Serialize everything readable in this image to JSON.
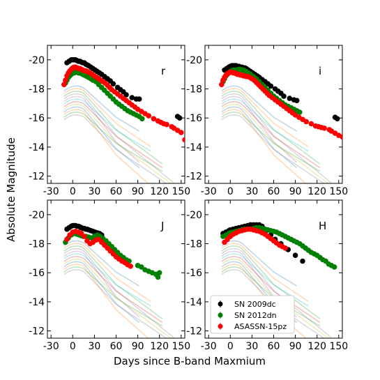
{
  "chart_data": {
    "type": "scatter",
    "xlabel": "Days since B-band Maxmium",
    "ylabel": "Absolute Magnitude",
    "xlim": [
      -35,
      155
    ],
    "ylim": [
      -21,
      -11.5
    ],
    "y_inverted": true,
    "xticks": [
      -30,
      0,
      30,
      60,
      90,
      120,
      150
    ],
    "xtick_labels": [
      "-30",
      "0",
      "30",
      "60",
      "90",
      "120",
      "150"
    ],
    "yticks": [
      -20,
      -18,
      -16,
      -14,
      -12
    ],
    "ytick_labels": [
      "-20",
      "-18",
      "-16",
      "-14",
      "-12"
    ],
    "legend": {
      "location": "lower-left of panel H",
      "entries": [
        {
          "label": "SN 2009dc",
          "color": "#000000",
          "marker": "circle with error bar"
        },
        {
          "label": "SN 2012dn",
          "color": "#008000",
          "marker": "circle with error bar"
        },
        {
          "label": "ASASSN-15pz",
          "color": "#ff0000",
          "marker": "circle with error bar"
        }
      ]
    },
    "panels": [
      {
        "band": "r",
        "series": [
          {
            "name": "SN 2009dc",
            "color": "#000000",
            "x": [
              -8,
              -5,
              -2,
              0,
              2,
              4,
              6,
              8,
              10,
              12,
              14,
              16,
              18,
              20,
              22,
              25,
              28,
              31,
              34,
              37,
              40,
              44,
              48,
              52,
              56,
              62,
              66,
              70,
              74,
              82,
              88,
              92,
              145,
              148
            ],
            "y": [
              -19.8,
              -19.9,
              -20.0,
              -20.0,
              -20.0,
              -20.0,
              -19.95,
              -19.9,
              -19.9,
              -19.85,
              -19.8,
              -19.8,
              -19.7,
              -19.65,
              -19.6,
              -19.5,
              -19.4,
              -19.3,
              -19.2,
              -19.1,
              -19.0,
              -18.85,
              -18.7,
              -18.55,
              -18.35,
              -18.1,
              -17.95,
              -17.8,
              -17.6,
              -17.4,
              -17.3,
              -17.3,
              -16.1,
              -16.0
            ]
          },
          {
            "name": "SN 2012dn",
            "color": "#008000",
            "x": [
              -10,
              -8,
              -6,
              -4,
              -2,
              0,
              2,
              4,
              6,
              8,
              10,
              12,
              14,
              16,
              18,
              20,
              22,
              25,
              28,
              32,
              36,
              40,
              44,
              48,
              52,
              56,
              60,
              64,
              68,
              72,
              76,
              80,
              84,
              88,
              92,
              96
            ],
            "y": [
              -18.4,
              -18.6,
              -18.8,
              -18.9,
              -19.0,
              -19.1,
              -19.1,
              -19.15,
              -19.15,
              -19.1,
              -19.1,
              -19.05,
              -19.0,
              -18.95,
              -18.9,
              -18.85,
              -18.8,
              -18.7,
              -18.6,
              -18.5,
              -18.3,
              -18.1,
              -17.9,
              -17.7,
              -17.5,
              -17.3,
              -17.1,
              -16.95,
              -16.8,
              -16.65,
              -16.5,
              -16.4,
              -16.3,
              -16.2,
              -16.1,
              -15.95
            ]
          },
          {
            "name": "ASASSN-15pz",
            "color": "#ff0000",
            "x": [
              -12,
              -10,
              -8,
              -6,
              -4,
              -2,
              0,
              2,
              4,
              6,
              8,
              10,
              12,
              14,
              16,
              18,
              20,
              22,
              24,
              27,
              30,
              33,
              36,
              39,
              42,
              45,
              48,
              51,
              54,
              58,
              62,
              66,
              70,
              74,
              78,
              82,
              86,
              90,
              95,
              100,
              105,
              112,
              118,
              122,
              126,
              130,
              137,
              140,
              145,
              150,
              155
            ],
            "y": [
              -18.3,
              -18.6,
              -18.9,
              -19.1,
              -19.25,
              -19.35,
              -19.45,
              -19.5,
              -19.5,
              -19.45,
              -19.4,
              -19.4,
              -19.35,
              -19.3,
              -19.25,
              -19.25,
              -19.2,
              -19.15,
              -19.1,
              -19.0,
              -18.9,
              -18.8,
              -18.7,
              -18.6,
              -18.5,
              -18.4,
              -18.25,
              -18.1,
              -17.95,
              -17.8,
              -17.65,
              -17.5,
              -17.35,
              -17.2,
              -17.05,
              -16.9,
              -16.75,
              -16.6,
              -16.45,
              -16.3,
              -16.15,
              -15.95,
              -15.8,
              -15.7,
              -15.6,
              -15.55,
              -15.4,
              -15.3,
              -15.15,
              -15.0,
              -14.5
            ]
          }
        ]
      },
      {
        "band": "i",
        "series": [
          {
            "name": "SN 2009dc",
            "color": "#000000",
            "x": [
              -8,
              -5,
              -2,
              0,
              2,
              4,
              6,
              8,
              10,
              12,
              14,
              16,
              18,
              20,
              22,
              25,
              28,
              31,
              34,
              37,
              40,
              44,
              48,
              52,
              56,
              62,
              66,
              70,
              74,
              82,
              88,
              92,
              145,
              148
            ],
            "y": [
              -19.3,
              -19.4,
              -19.5,
              -19.55,
              -19.6,
              -19.6,
              -19.6,
              -19.6,
              -19.55,
              -19.55,
              -19.5,
              -19.5,
              -19.45,
              -19.45,
              -19.4,
              -19.3,
              -19.2,
              -19.1,
              -19.0,
              -18.9,
              -18.8,
              -18.65,
              -18.5,
              -18.35,
              -18.2,
              -18.0,
              -17.85,
              -17.7,
              -17.5,
              -17.35,
              -17.25,
              -17.2,
              -16.05,
              -15.95
            ]
          },
          {
            "name": "SN 2012dn",
            "color": "#008000",
            "x": [
              -10,
              -8,
              -6,
              -4,
              -2,
              0,
              2,
              4,
              6,
              8,
              10,
              12,
              14,
              16,
              18,
              20,
              22,
              25,
              28,
              32,
              36,
              40,
              44,
              48,
              52,
              56,
              60,
              64,
              68,
              72,
              76,
              80,
              84,
              88,
              92,
              96
            ],
            "y": [
              -18.5,
              -18.7,
              -18.9,
              -19.0,
              -19.1,
              -19.2,
              -19.25,
              -19.3,
              -19.3,
              -19.3,
              -19.3,
              -19.35,
              -19.35,
              -19.3,
              -19.3,
              -19.25,
              -19.2,
              -19.1,
              -19.0,
              -18.85,
              -18.7,
              -18.5,
              -18.3,
              -18.1,
              -17.9,
              -17.7,
              -17.5,
              -17.35,
              -17.2,
              -17.05,
              -16.9,
              -16.8,
              -16.7,
              -16.6,
              -16.5,
              -16.4
            ]
          },
          {
            "name": "ASASSN-15pz",
            "color": "#ff0000",
            "x": [
              -12,
              -10,
              -8,
              -6,
              -4,
              -2,
              0,
              2,
              4,
              6,
              8,
              10,
              12,
              14,
              16,
              18,
              20,
              22,
              24,
              27,
              30,
              33,
              36,
              39,
              42,
              45,
              48,
              51,
              54,
              58,
              62,
              66,
              70,
              74,
              78,
              82,
              86,
              90,
              95,
              100,
              105,
              112,
              118,
              122,
              126,
              130,
              137,
              140,
              145,
              150,
              155
            ],
            "y": [
              -18.3,
              -18.6,
              -18.8,
              -18.95,
              -19.05,
              -19.1,
              -19.15,
              -19.15,
              -19.1,
              -19.1,
              -19.05,
              -19.0,
              -19.0,
              -18.95,
              -18.95,
              -18.9,
              -18.9,
              -18.85,
              -18.85,
              -18.8,
              -18.7,
              -18.6,
              -18.45,
              -18.3,
              -18.15,
              -18.0,
              -17.85,
              -17.7,
              -17.55,
              -17.4,
              -17.25,
              -17.1,
              -16.95,
              -16.8,
              -16.65,
              -16.5,
              -16.35,
              -16.2,
              -16.05,
              -15.9,
              -15.75,
              -15.6,
              -15.45,
              -15.4,
              -15.35,
              -15.3,
              -15.2,
              -15.1,
              -14.95,
              -14.8,
              -14.7
            ]
          }
        ]
      },
      {
        "band": "J",
        "series": [
          {
            "name": "SN 2009dc",
            "color": "#000000",
            "x": [
              -8,
              -5,
              -2,
              0,
              2,
              4,
              6,
              8,
              10,
              12,
              14,
              16,
              18,
              20,
              22,
              25,
              28,
              31,
              34,
              37,
              40
            ],
            "y": [
              -19.0,
              -19.1,
              -19.2,
              -19.25,
              -19.25,
              -19.25,
              -19.2,
              -19.2,
              -19.15,
              -19.1,
              -19.05,
              -19.05,
              -19.0,
              -19.0,
              -18.95,
              -18.9,
              -18.85,
              -18.8,
              -18.75,
              -18.7,
              -18.6
            ]
          },
          {
            "name": "SN 2012dn",
            "color": "#008000",
            "x": [
              -10,
              -6,
              -2,
              0,
              3,
              6,
              9,
              12,
              15,
              18,
              22,
              26,
              30,
              34,
              38,
              42,
              46,
              50,
              54,
              58,
              62,
              66,
              70,
              74,
              78,
              90,
              95,
              100,
              105,
              110,
              115,
              118,
              120
            ],
            "y": [
              -18.1,
              -18.4,
              -18.6,
              -18.7,
              -18.7,
              -18.65,
              -18.6,
              -18.55,
              -18.5,
              -18.5,
              -18.45,
              -18.4,
              -18.5,
              -18.6,
              -18.5,
              -18.35,
              -18.2,
              -18.0,
              -17.8,
              -17.6,
              -17.4,
              -17.2,
              -17.05,
              -16.9,
              -16.8,
              -16.5,
              -16.4,
              -16.2,
              -16.1,
              -16.0,
              -15.9,
              -15.7,
              -16.0
            ]
          },
          {
            "name": "ASASSN-15pz",
            "color": "#ff0000",
            "x": [
              -8,
              -4,
              0,
              4,
              8,
              12,
              16,
              20,
              24,
              28,
              32,
              36,
              40,
              44,
              48,
              52,
              56,
              60,
              64,
              68,
              72,
              76,
              80
            ],
            "y": [
              -18.3,
              -18.6,
              -18.8,
              -18.85,
              -18.8,
              -18.7,
              -18.5,
              -18.2,
              -18.0,
              -18.1,
              -18.25,
              -18.3,
              -18.1,
              -17.9,
              -17.7,
              -17.5,
              -17.3,
              -17.1,
              -16.95,
              -16.8,
              -16.7,
              -16.55,
              -16.45
            ]
          }
        ]
      },
      {
        "band": "H",
        "series": [
          {
            "name": "SN 2009dc",
            "color": "#000000",
            "x": [
              -10,
              -6,
              -2,
              0,
              4,
              8,
              12,
              16,
              20,
              24,
              28,
              32,
              36,
              40,
              44,
              50,
              56,
              62,
              70,
              80,
              90,
              100
            ],
            "y": [
              -18.7,
              -18.8,
              -18.9,
              -18.95,
              -19.0,
              -19.05,
              -19.1,
              -19.15,
              -19.2,
              -19.25,
              -19.3,
              -19.3,
              -19.3,
              -19.3,
              -19.2,
              -18.9,
              -18.6,
              -18.3,
              -18.0,
              -17.6,
              -17.2,
              -16.8
            ]
          },
          {
            "name": "SN 2012dn",
            "color": "#008000",
            "x": [
              -10,
              -6,
              -2,
              0,
              4,
              8,
              12,
              16,
              20,
              24,
              28,
              32,
              36,
              40,
              44,
              48,
              52,
              56,
              60,
              64,
              68,
              72,
              76,
              80,
              84,
              88,
              92,
              96,
              100,
              104,
              108,
              112,
              116,
              120,
              124,
              128,
              132,
              136,
              140,
              144
            ],
            "y": [
              -18.5,
              -18.6,
              -18.7,
              -18.75,
              -18.8,
              -18.85,
              -18.9,
              -18.95,
              -19.0,
              -19.0,
              -19.0,
              -19.05,
              -19.1,
              -19.1,
              -19.05,
              -19.0,
              -18.95,
              -18.9,
              -18.85,
              -18.8,
              -18.7,
              -18.6,
              -18.5,
              -18.4,
              -18.3,
              -18.2,
              -18.1,
              -18.0,
              -17.85,
              -17.7,
              -17.55,
              -17.4,
              -17.3,
              -17.2,
              -17.05,
              -16.9,
              -16.8,
              -16.6,
              -16.5,
              -16.4
            ]
          },
          {
            "name": "ASASSN-15pz",
            "color": "#ff0000",
            "x": [
              -8,
              -4,
              0,
              4,
              8,
              12,
              16,
              20,
              24,
              28,
              32,
              36,
              40,
              44,
              48,
              52,
              56,
              60,
              64,
              68,
              72,
              76
            ],
            "y": [
              -18.1,
              -18.3,
              -18.5,
              -18.65,
              -18.75,
              -18.85,
              -18.9,
              -18.95,
              -19.0,
              -19.0,
              -18.95,
              -18.9,
              -18.85,
              -18.75,
              -18.65,
              -18.5,
              -18.35,
              -18.2,
              -18.05,
              -17.9,
              -17.8,
              -17.7
            ]
          }
        ]
      }
    ]
  }
}
